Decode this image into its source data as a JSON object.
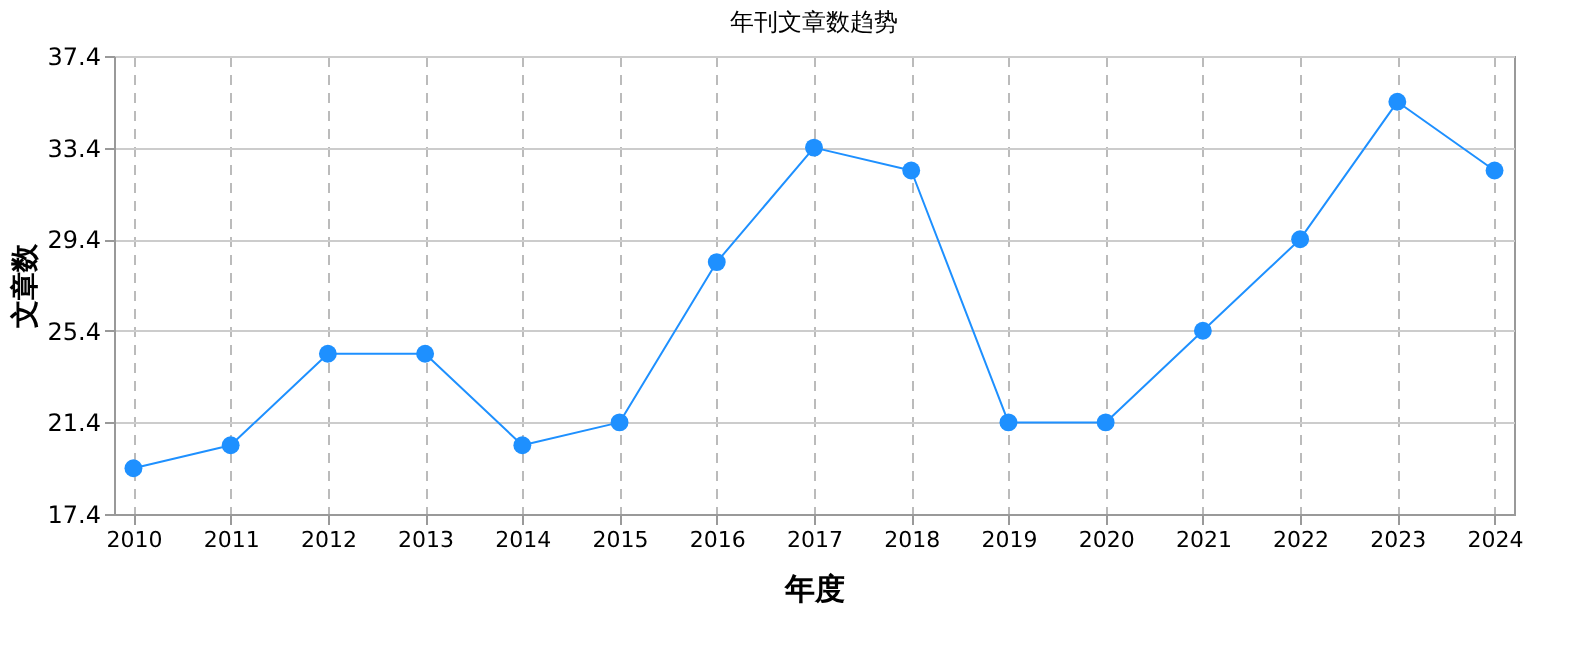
{
  "chart_data": {
    "type": "line",
    "title": "年刊文章数趋势",
    "xlabel": "年度",
    "ylabel": "文章数",
    "categories": [
      "2010",
      "2011",
      "2012",
      "2013",
      "2014",
      "2015",
      "2016",
      "2017",
      "2018",
      "2019",
      "2020",
      "2021",
      "2022",
      "2023",
      "2024"
    ],
    "series": [
      {
        "color": "#1e90ff",
        "values": [
          19.4,
          20.4,
          24.4,
          24.4,
          20.4,
          21.4,
          28.4,
          33.4,
          32.4,
          21.4,
          21.4,
          25.4,
          29.4,
          35.4,
          32.4
        ]
      }
    ],
    "ylim": [
      17.4,
      37.4
    ],
    "yticks": [
      17.4,
      21.4,
      25.4,
      29.4,
      33.4,
      37.4
    ],
    "grid": true,
    "marker": "circle"
  }
}
